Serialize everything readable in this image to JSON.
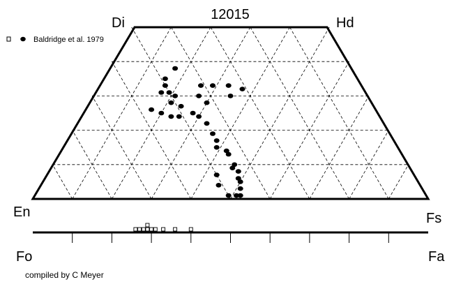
{
  "chart_data": {
    "type": "scatter",
    "title": "12015",
    "diagram": "pyroxene quadrilateral with olivine Fo-Fa bar",
    "vertices": {
      "top_left": "Di",
      "top_right": "Hd",
      "bottom_left": "En",
      "bottom_right": "Fs"
    },
    "olivine_axis": {
      "left": "Fo",
      "right": "Fa"
    },
    "legend": {
      "open_marker_label": "",
      "filled_marker_label": "Baldridge et al. 1979",
      "position": "top-left"
    },
    "credit": "compiled by C Meyer",
    "grid": true,
    "pyroxene_series": {
      "name": "Baldridge et al. 1979",
      "marker": "filled-circle",
      "points": [
        {
          "wo": 38,
          "fs": 17
        },
        {
          "wo": 35,
          "fs": 16
        },
        {
          "wo": 33,
          "fs": 17
        },
        {
          "wo": 31,
          "fs": 17
        },
        {
          "wo": 31,
          "fs": 19
        },
        {
          "wo": 30,
          "fs": 21
        },
        {
          "wo": 28,
          "fs": 21
        },
        {
          "wo": 27,
          "fs": 24
        },
        {
          "wo": 25,
          "fs": 28
        },
        {
          "wo": 24,
          "fs": 30
        },
        {
          "wo": 22,
          "fs": 33
        },
        {
          "wo": 19,
          "fs": 36
        },
        {
          "wo": 17,
          "fs": 38
        },
        {
          "wo": 15,
          "fs": 39
        },
        {
          "wo": 14,
          "fs": 42
        },
        {
          "wo": 13,
          "fs": 43
        },
        {
          "wo": 10,
          "fs": 46
        },
        {
          "wo": 9,
          "fs": 46
        },
        {
          "wo": 8,
          "fs": 48
        },
        {
          "wo": 6,
          "fs": 49
        },
        {
          "wo": 5,
          "fs": 50
        },
        {
          "wo": 3,
          "fs": 51
        },
        {
          "wo": 1,
          "fs": 51
        },
        {
          "wo": 1,
          "fs": 52
        },
        {
          "wo": 7,
          "fs": 43
        },
        {
          "wo": 4,
          "fs": 45
        },
        {
          "wo": 1,
          "fs": 49
        },
        {
          "wo": 26,
          "fs": 17
        },
        {
          "wo": 25,
          "fs": 20
        },
        {
          "wo": 24,
          "fs": 23
        },
        {
          "wo": 24,
          "fs": 25
        },
        {
          "wo": 30,
          "fs": 27
        },
        {
          "wo": 28,
          "fs": 30
        },
        {
          "wo": 33,
          "fs": 26
        },
        {
          "wo": 33,
          "fs": 29
        },
        {
          "wo": 33,
          "fs": 33
        },
        {
          "wo": 30,
          "fs": 35
        },
        {
          "wo": 32,
          "fs": 37
        }
      ]
    },
    "olivine_series": {
      "name": "",
      "marker": "open-square",
      "fa_values": [
        26,
        27,
        28,
        29,
        29,
        30,
        31,
        33,
        36,
        40
      ]
    },
    "fo_fa_ticks": 10
  }
}
